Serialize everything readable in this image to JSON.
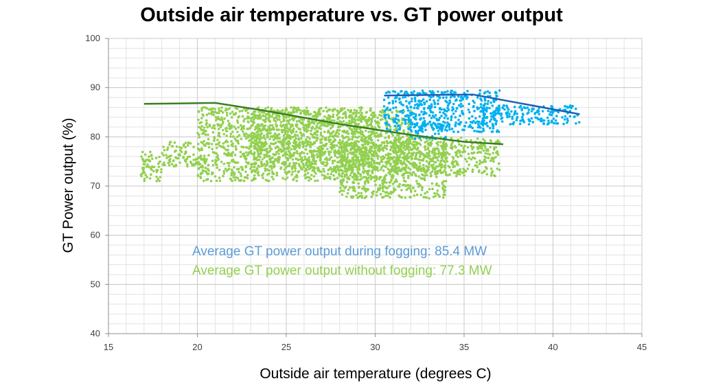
{
  "chart_data": {
    "type": "scatter",
    "title": "Outside air temperature vs. GT power output",
    "xlabel": "Outside air temperature (degrees C)",
    "ylabel": "GT Power output (%)",
    "xlim": [
      15,
      45
    ],
    "ylim": [
      40,
      100
    ],
    "x_ticks": [
      15,
      20,
      25,
      30,
      35,
      40,
      45
    ],
    "y_ticks": [
      40,
      50,
      60,
      70,
      80,
      90,
      100
    ],
    "grid": true,
    "series": [
      {
        "color": "#92d050",
        "marker": "dot",
        "clusters": [
          {
            "x": [
              20,
              30
            ],
            "y": [
              71,
              86
            ]
          },
          {
            "x": [
              23,
              32
            ],
            "y": [
              73,
              85.5
            ]
          },
          {
            "x": [
              28,
              34
            ],
            "y": [
              67.5,
              79
            ]
          },
          {
            "x": [
              31,
              37
            ],
            "y": [
              72,
              80
            ]
          },
          {
            "x": [
              16.8,
              18
            ],
            "y": [
              71,
              77
            ]
          },
          {
            "x": [
              18,
              20
            ],
            "y": [
              74,
              79
            ]
          }
        ]
      },
      {
        "color": "#00b0f0",
        "marker": "dot",
        "clusters": [
          {
            "x": [
              30.5,
              37
            ],
            "y": [
              81,
              89.5
            ]
          },
          {
            "x": [
              36,
              41.5
            ],
            "y": [
              82.5,
              86.5
            ]
          },
          {
            "x": [
              32,
              34
            ],
            "y": [
              79.5,
              83
            ]
          }
        ]
      },
      {
        "color": "#3a7d22",
        "marker": "line",
        "x": [
          17,
          21,
          24,
          28,
          32,
          35,
          37.2
        ],
        "y": [
          86.7,
          86.9,
          85.2,
          82.6,
          80.4,
          79,
          78.5
        ]
      },
      {
        "color": "#1f5fb4",
        "marker": "line",
        "x": [
          30.5,
          35.5,
          41.5
        ],
        "y": [
          88.4,
          88.6,
          84.6
        ]
      }
    ],
    "annotations": [
      {
        "text": "Average GT power output during fogging: 85.4 MW",
        "color": "#5b9bd5"
      },
      {
        "text": "Average GT power output without fogging: 77.3 MW",
        "color": "#92d050"
      }
    ]
  }
}
